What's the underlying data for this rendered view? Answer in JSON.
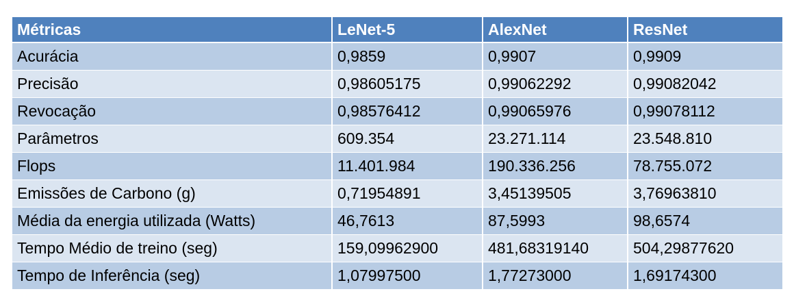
{
  "table": {
    "headers": [
      "Métricas",
      "LeNet-5",
      "AlexNet",
      "ResNet"
    ],
    "rows": [
      [
        "Acurácia",
        "0,9859",
        "0,9907",
        "0,9909"
      ],
      [
        "Precisão",
        "0,98605175",
        "0,99062292",
        "0,99082042"
      ],
      [
        "Revocação",
        "0,98576412",
        "0,99065976",
        "0,99078112"
      ],
      [
        "Parâmetros",
        "609.354",
        "23.271.114",
        "23.548.810"
      ],
      [
        "Flops",
        "11.401.984",
        "190.336.256",
        "78.755.072"
      ],
      [
        "Emissões de Carbono (g)",
        "0,71954891",
        "3,45139505",
        "3,76963810"
      ],
      [
        "Média da energia utilizada (Watts)",
        "46,7613",
        "87,5993",
        "98,6574"
      ],
      [
        "Tempo Médio de treino (seg)",
        "159,09962900",
        "481,68319140",
        "504,29877620"
      ],
      [
        "Tempo de Inferência (seg)",
        "1,07997500",
        "1,77273000",
        "1,69174300"
      ]
    ]
  },
  "colors": {
    "header_background": "#4f81bd",
    "header_text": "#ffffff",
    "row_odd": "#b8cce4",
    "row_even": "#dbe5f1"
  }
}
